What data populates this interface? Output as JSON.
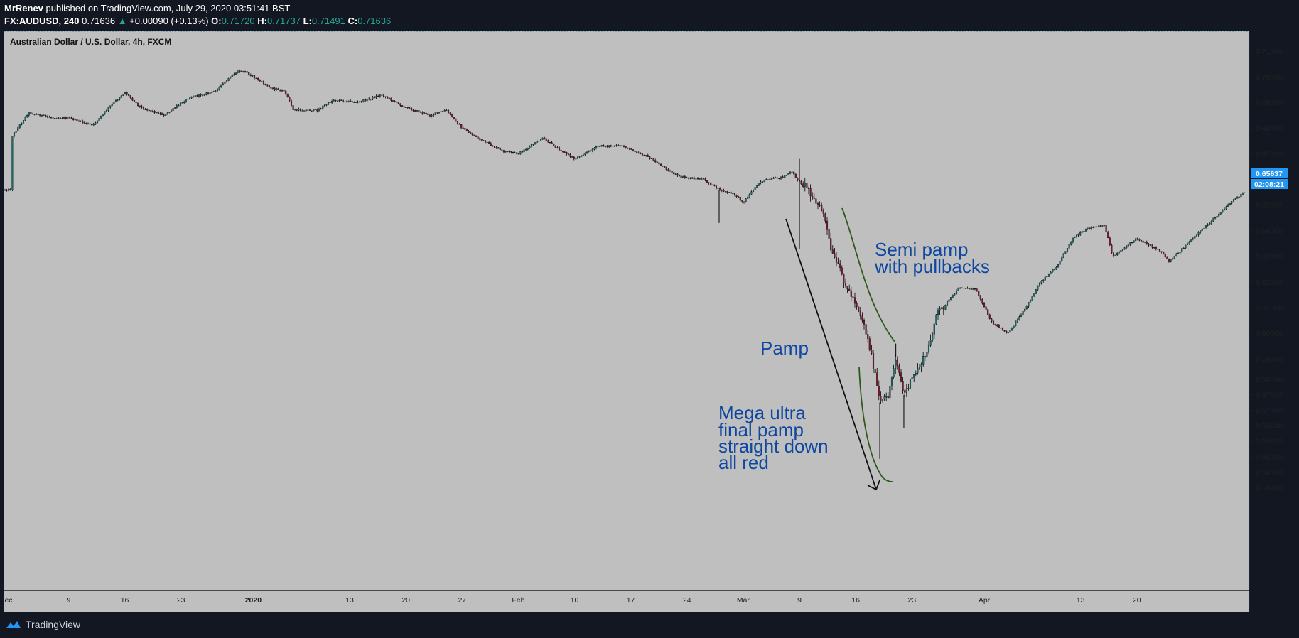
{
  "header": {
    "author": "MrRenev",
    "published": "published on TradingView.com, July 29, 2020 03:51:41 BST",
    "symbol": "FX:AUDUSD, 240",
    "last": "0.71636",
    "change_arrow": "▲",
    "change": "+0.00090 (+0.13%)",
    "o_label": "O:",
    "o_value": "0.71720",
    "h_label": "H:",
    "h_value": "0.71737",
    "l_label": "L:",
    "l_value": "0.71491",
    "c_label": "C:",
    "c_value": "0.71636"
  },
  "footer": {
    "brand": "TradingView"
  },
  "colors": {
    "page_bg": "#131722",
    "plot_bg": "#bfbfbf",
    "candle": "#000000",
    "bear_accent": "#7a1a2e",
    "bull_accent": "#1e6e6e",
    "annotation_text": "#0d47a1",
    "curve_line": "#2e5a1c",
    "arrow_line": "#111111",
    "price_tag": "#2196f3"
  },
  "chart_data": {
    "type": "candlestick",
    "title": "Australian Dollar / U.S. Dollar, 4h, FXCM",
    "y_axis_side": "right",
    "ylim": [
      0.5363,
      0.7136
    ],
    "y_ticks": [
      "0.71000",
      "0.70000",
      "0.69000",
      "0.68000",
      "0.67000",
      "0.66000",
      "0.65000",
      "0.64000",
      "0.63000",
      "0.62000",
      "0.61000",
      "0.60000",
      "0.59000",
      "0.58200",
      "0.57600",
      "0.57000",
      "0.56400",
      "0.55800",
      "0.55200",
      "0.54600",
      "0.54000"
    ],
    "x_ticks": [
      "ec",
      "9",
      "16",
      "23",
      "2020",
      "13",
      "20",
      "27",
      "Feb",
      "10",
      "17",
      "24",
      "Mar",
      "9",
      "16",
      "23",
      "Apr",
      "13",
      "20"
    ],
    "current_price": "0.65637",
    "countdown": "02:08:21",
    "series_path": [
      [
        "2019-12-02",
        0.677
      ],
      [
        "2019-12-04",
        0.686
      ],
      [
        "2019-12-07",
        0.684
      ],
      [
        "2019-12-09",
        0.684
      ],
      [
        "2019-12-12",
        0.681
      ],
      [
        "2019-12-14",
        0.688
      ],
      [
        "2019-12-16",
        0.694
      ],
      [
        "2019-12-18",
        0.688
      ],
      [
        "2019-12-21",
        0.685
      ],
      [
        "2019-12-24",
        0.692
      ],
      [
        "2019-12-27",
        0.694
      ],
      [
        "2019-12-30",
        0.702
      ],
      [
        "2019-12-31",
        0.702
      ],
      [
        "2020-01-03",
        0.696
      ],
      [
        "2020-01-05",
        0.694
      ],
      [
        "2020-01-06",
        0.687
      ],
      [
        "2020-01-09",
        0.687
      ],
      [
        "2020-01-11",
        0.691
      ],
      [
        "2020-01-14",
        0.69
      ],
      [
        "2020-01-17",
        0.693
      ],
      [
        "2020-01-20",
        0.688
      ],
      [
        "2020-01-23",
        0.685
      ],
      [
        "2020-01-25",
        0.687
      ],
      [
        "2020-01-27",
        0.68
      ],
      [
        "2020-01-29",
        0.676
      ],
      [
        "2020-02-01",
        0.671
      ],
      [
        "2020-02-03",
        0.67
      ],
      [
        "2020-02-06",
        0.676
      ],
      [
        "2020-02-10",
        0.668
      ],
      [
        "2020-02-13",
        0.673
      ],
      [
        "2020-02-16",
        0.673
      ],
      [
        "2020-02-19",
        0.669
      ],
      [
        "2020-02-21",
        0.665
      ],
      [
        "2020-02-23",
        0.661
      ],
      [
        "2020-02-26",
        0.66
      ],
      [
        "2020-02-28",
        0.656
      ],
      [
        "2020-03-01",
        0.654
      ],
      [
        "2020-03-02",
        0.651
      ],
      [
        "2020-03-04",
        0.659
      ],
      [
        "2020-03-07",
        0.661
      ],
      [
        "2020-03-08",
        0.663
      ],
      [
        "2020-03-09",
        0.659
      ],
      [
        "2020-03-10",
        0.657
      ],
      [
        "2020-03-11",
        0.651
      ],
      [
        "2020-03-12",
        0.647
      ],
      [
        "2020-03-13",
        0.631
      ],
      [
        "2020-03-14",
        0.625
      ],
      [
        "2020-03-15",
        0.617
      ],
      [
        "2020-03-16",
        0.612
      ],
      [
        "2020-03-17",
        0.604
      ],
      [
        "2020-03-18",
        0.591
      ],
      [
        "2020-03-19",
        0.573
      ],
      [
        "2020-03-20",
        0.575
      ],
      [
        "2020-03-21",
        0.591
      ],
      [
        "2020-03-22",
        0.576
      ],
      [
        "2020-03-23",
        0.582
      ],
      [
        "2020-03-25",
        0.593
      ],
      [
        "2020-03-26",
        0.607
      ],
      [
        "2020-03-29",
        0.618
      ],
      [
        "2020-03-31",
        0.617
      ],
      [
        "2020-04-02",
        0.604
      ],
      [
        "2020-04-04",
        0.6
      ],
      [
        "2020-04-06",
        0.609
      ],
      [
        "2020-04-08",
        0.62
      ],
      [
        "2020-04-10",
        0.626
      ],
      [
        "2020-04-12",
        0.637
      ],
      [
        "2020-04-14",
        0.641
      ],
      [
        "2020-04-16",
        0.642
      ],
      [
        "2020-04-17",
        0.63
      ],
      [
        "2020-04-20",
        0.637
      ],
      [
        "2020-04-23",
        0.632
      ],
      [
        "2020-04-24",
        0.628
      ],
      [
        "2020-04-26",
        0.634
      ],
      [
        "2020-04-29",
        0.643
      ],
      [
        "2020-05-02",
        0.652
      ],
      [
        "2020-05-04",
        0.656
      ]
    ],
    "spikes": [
      [
        "2020-02-28",
        0.643
      ],
      [
        "2020-03-09",
        0.633
      ],
      [
        "2020-03-09",
        0.668
      ],
      [
        "2020-03-19",
        0.551
      ],
      [
        "2020-03-21",
        0.596
      ],
      [
        "2020-03-22",
        0.563
      ]
    ]
  },
  "annotations": [
    {
      "text": "Semi pamp\nwith pullbacks"
    },
    {
      "text": "Pamp"
    },
    {
      "text": "Mega ultra\nfinal pamp\nstraight down\nall red"
    }
  ]
}
